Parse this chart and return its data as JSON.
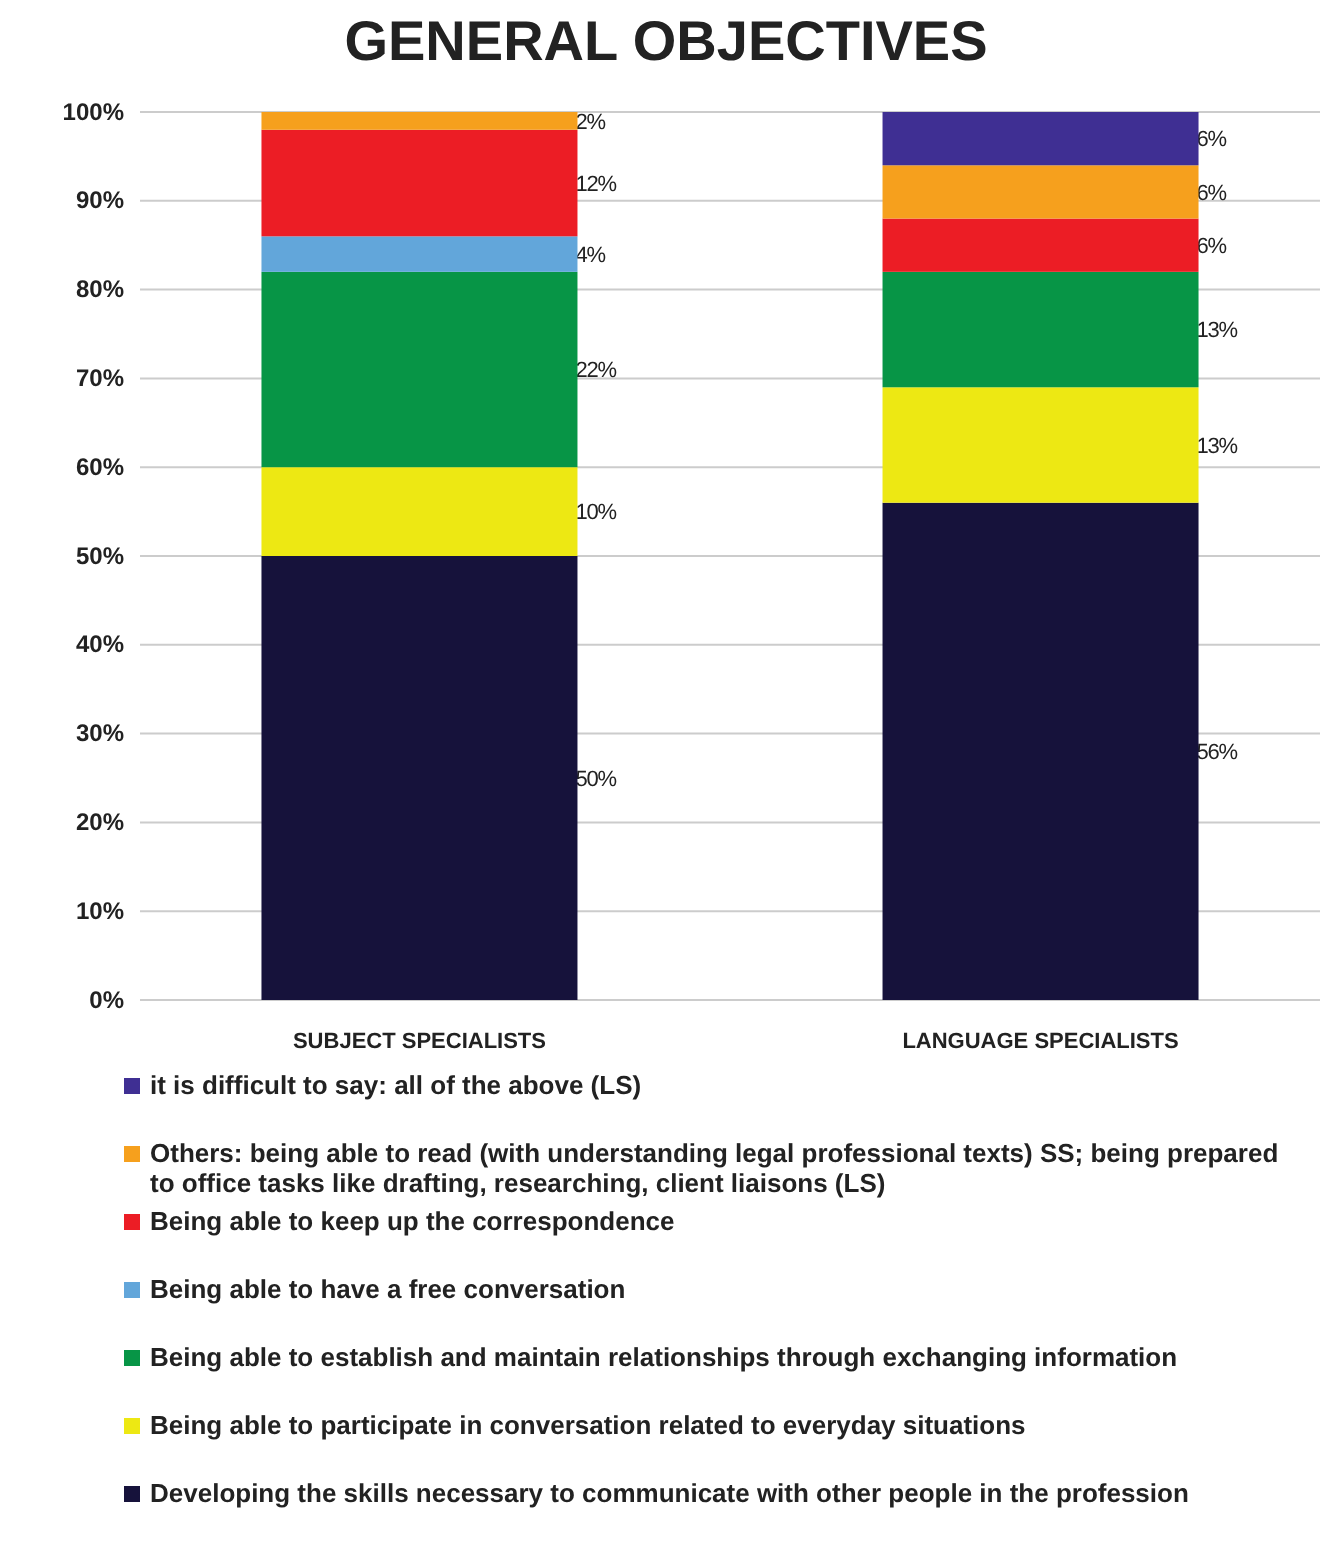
{
  "chart_data": {
    "type": "bar",
    "title": "GENERAL OBJECTIVES",
    "stacked": true,
    "categories": [
      "SUBJECT SPECIALISTS",
      "LANGUAGE SPECIALISTS"
    ],
    "series": [
      {
        "name": "Developing the skills necessary to communicate with other people in the profession",
        "color": "#16123b",
        "values": [
          50,
          56
        ],
        "value_labels": [
          "50%",
          "56%"
        ]
      },
      {
        "name": "Being able to participate in conversation related to everyday situations",
        "color": "#ede813",
        "values": [
          10,
          13
        ],
        "value_labels": [
          "10%",
          "13%"
        ]
      },
      {
        "name": "Being able to establish and maintain relationships through exchanging information",
        "color": "#079546",
        "values": [
          22,
          13
        ],
        "value_labels": [
          "22%",
          "13%"
        ]
      },
      {
        "name": "Being able to have a free conversation",
        "color": "#62a6da",
        "values": [
          4,
          0
        ],
        "value_labels": [
          "4%",
          null
        ]
      },
      {
        "name": "Being able to keep up the correspondence",
        "color": "#ec1d25",
        "values": [
          12,
          6
        ],
        "value_labels": [
          "12%",
          "6%"
        ]
      },
      {
        "name": "Others: being able to read (with understanding legal professional texts) SS; being prepared to office tasks like drafting, researching, client liaisons (LS)",
        "color": "#f6a01d",
        "values": [
          2,
          6
        ],
        "value_labels": [
          "2%",
          "6%"
        ]
      },
      {
        "name": "it is difficult to say: all of the above (LS)",
        "color": "#3f2f93",
        "values": [
          0,
          6
        ],
        "value_labels": [
          null,
          "6%"
        ]
      }
    ],
    "ylim": [
      0,
      100
    ],
    "yticks": [
      {
        "value": 0,
        "label": "0%"
      },
      {
        "value": 10,
        "label": "10%"
      },
      {
        "value": 20,
        "label": "20%"
      },
      {
        "value": 30,
        "label": "30%"
      },
      {
        "value": 40,
        "label": "40%"
      },
      {
        "value": 50,
        "label": "50%"
      },
      {
        "value": 60,
        "label": "60%"
      },
      {
        "value": 70,
        "label": "70%"
      },
      {
        "value": 80,
        "label": "80%"
      },
      {
        "value": 90,
        "label": "90%"
      },
      {
        "value": 100,
        "label": "100%"
      }
    ],
    "grid": "y",
    "legend": "bottom"
  }
}
